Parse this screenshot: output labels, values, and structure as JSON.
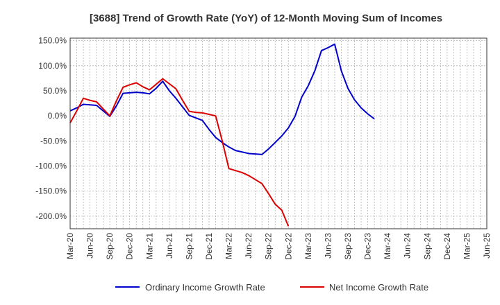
{
  "chart_data": {
    "type": "line",
    "title": "[3688]  Trend of Growth Rate (YoY) of 12-Month Moving Sum of Incomes",
    "xlabel": "",
    "ylabel": "",
    "x_tick_labels": [
      "Mar-20",
      "Jun-20",
      "Sep-20",
      "Dec-20",
      "Mar-21",
      "Jun-21",
      "Sep-21",
      "Dec-21",
      "Mar-22",
      "Jun-22",
      "Sep-22",
      "Dec-22",
      "Mar-23",
      "Jun-23",
      "Sep-23",
      "Dec-23",
      "Mar-24",
      "Jun-24",
      "Sep-24",
      "Dec-24",
      "Mar-25",
      "Jun-25"
    ],
    "y_tick_labels": [
      "150.0%",
      "100.0%",
      "50.0%",
      "0.0%",
      "-50.0%",
      "-100.0%",
      "-150.0%",
      "-200.0%"
    ],
    "y_ticks": [
      150,
      100,
      50,
      0,
      -50,
      -100,
      -150,
      -200
    ],
    "ylim": [
      -225,
      155
    ],
    "grid": true,
    "legend_position": "bottom",
    "series": [
      {
        "name": "Ordinary Income Growth Rate",
        "color": "#0000cc",
        "values": [
          10,
          16,
          23,
          22,
          21,
          10,
          -1,
          20,
          45,
          46,
          47,
          46,
          44,
          55,
          69,
          50,
          35,
          18,
          1,
          -4,
          -9,
          -27,
          -43,
          -53,
          -62,
          -69,
          -72,
          -75,
          -76,
          -77,
          -66,
          -53,
          -40,
          -24,
          -1,
          37,
          60,
          90,
          130,
          136,
          143,
          90,
          55,
          32,
          16,
          4,
          -6
        ]
      },
      {
        "name": "Net Income Growth Rate",
        "color": "#dd0000",
        "values": [
          -14,
          10,
          35,
          31,
          28,
          14,
          0,
          30,
          57,
          62,
          66,
          58,
          52,
          63,
          74,
          64,
          54,
          31,
          9,
          7,
          6,
          3,
          0,
          -50,
          -105,
          -109,
          -113,
          -119,
          -127,
          -135,
          -155,
          -176,
          -188,
          -220
        ]
      }
    ]
  }
}
